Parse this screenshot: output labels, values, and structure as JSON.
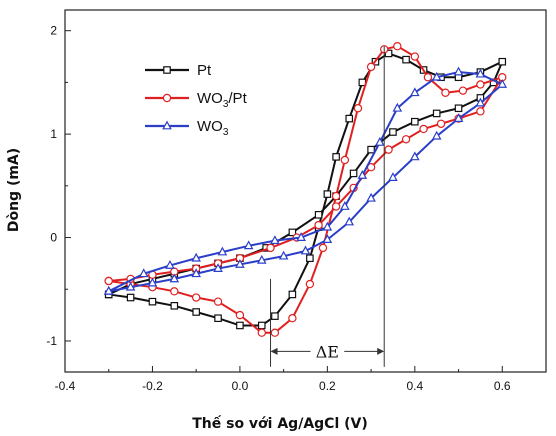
{
  "chart_data": {
    "type": "line",
    "xlabel": "Thế so với Ag/AgCl (V)",
    "ylabel": "Dòng (mA)",
    "xlim": [
      -0.4,
      0.7
    ],
    "ylim": [
      -1.3,
      2.2
    ],
    "x_ticks": [
      "-0.4",
      "-0.2",
      "0.0",
      "0.2",
      "0.4",
      "0.6"
    ],
    "y_ticks": [
      "-1",
      "0",
      "1",
      "2"
    ],
    "x_tick_values": [
      -0.4,
      -0.2,
      0.0,
      0.2,
      0.4,
      0.6
    ],
    "y_tick_values": [
      -1,
      0,
      1,
      2
    ],
    "grid": false,
    "legend_position": "top-left",
    "series": [
      {
        "name": "Pt",
        "color": "#111111",
        "marker": "square",
        "points": [
          [
            -0.3,
            -0.55
          ],
          [
            -0.25,
            -0.58
          ],
          [
            -0.2,
            -0.62
          ],
          [
            -0.15,
            -0.66
          ],
          [
            -0.1,
            -0.72
          ],
          [
            -0.05,
            -0.78
          ],
          [
            0.0,
            -0.85
          ],
          [
            0.05,
            -0.85
          ],
          [
            0.08,
            -0.76
          ],
          [
            0.12,
            -0.55
          ],
          [
            0.16,
            -0.2
          ],
          [
            0.18,
            0.1
          ],
          [
            0.2,
            0.42
          ],
          [
            0.22,
            0.78
          ],
          [
            0.25,
            1.15
          ],
          [
            0.28,
            1.5
          ],
          [
            0.31,
            1.7
          ],
          [
            0.34,
            1.78
          ],
          [
            0.38,
            1.72
          ],
          [
            0.42,
            1.62
          ],
          [
            0.46,
            1.55
          ],
          [
            0.5,
            1.55
          ],
          [
            0.55,
            1.6
          ],
          [
            0.6,
            1.7
          ],
          [
            0.58,
            1.5
          ],
          [
            0.55,
            1.35
          ],
          [
            0.5,
            1.25
          ],
          [
            0.45,
            1.2
          ],
          [
            0.4,
            1.12
          ],
          [
            0.35,
            1.02
          ],
          [
            0.3,
            0.85
          ],
          [
            0.26,
            0.62
          ],
          [
            0.22,
            0.4
          ],
          [
            0.18,
            0.22
          ],
          [
            0.12,
            0.05
          ],
          [
            0.06,
            -0.1
          ],
          [
            0.0,
            -0.2
          ],
          [
            -0.05,
            -0.25
          ],
          [
            -0.1,
            -0.3
          ],
          [
            -0.15,
            -0.35
          ],
          [
            -0.2,
            -0.4
          ],
          [
            -0.25,
            -0.45
          ],
          [
            -0.3,
            -0.55
          ]
        ]
      },
      {
        "name": "WO3/Pt",
        "color": "#e02020",
        "marker": "circle",
        "points": [
          [
            -0.3,
            -0.42
          ],
          [
            -0.25,
            -0.45
          ],
          [
            -0.2,
            -0.48
          ],
          [
            -0.15,
            -0.52
          ],
          [
            -0.1,
            -0.58
          ],
          [
            -0.05,
            -0.62
          ],
          [
            0.0,
            -0.75
          ],
          [
            0.05,
            -0.92
          ],
          [
            0.08,
            -0.92
          ],
          [
            0.12,
            -0.78
          ],
          [
            0.16,
            -0.45
          ],
          [
            0.19,
            -0.1
          ],
          [
            0.22,
            0.4
          ],
          [
            0.24,
            0.75
          ],
          [
            0.27,
            1.25
          ],
          [
            0.3,
            1.65
          ],
          [
            0.33,
            1.82
          ],
          [
            0.36,
            1.85
          ],
          [
            0.4,
            1.75
          ],
          [
            0.43,
            1.55
          ],
          [
            0.47,
            1.4
          ],
          [
            0.51,
            1.42
          ],
          [
            0.55,
            1.48
          ],
          [
            0.6,
            1.55
          ],
          [
            0.55,
            1.22
          ],
          [
            0.5,
            1.15
          ],
          [
            0.46,
            1.1
          ],
          [
            0.42,
            1.05
          ],
          [
            0.38,
            0.95
          ],
          [
            0.34,
            0.85
          ],
          [
            0.3,
            0.68
          ],
          [
            0.26,
            0.48
          ],
          [
            0.22,
            0.3
          ],
          [
            0.18,
            0.12
          ],
          [
            0.13,
            0.0
          ],
          [
            0.07,
            -0.1
          ],
          [
            0.0,
            -0.2
          ],
          [
            -0.05,
            -0.25
          ],
          [
            -0.1,
            -0.3
          ],
          [
            -0.15,
            -0.33
          ],
          [
            -0.2,
            -0.36
          ],
          [
            -0.25,
            -0.4
          ],
          [
            -0.3,
            -0.42
          ]
        ]
      },
      {
        "name": "WO3",
        "color": "#2a3ec8",
        "marker": "triangle",
        "points": [
          [
            -0.3,
            -0.52
          ],
          [
            -0.25,
            -0.48
          ],
          [
            -0.2,
            -0.44
          ],
          [
            -0.15,
            -0.4
          ],
          [
            -0.1,
            -0.35
          ],
          [
            -0.05,
            -0.3
          ],
          [
            0.0,
            -0.26
          ],
          [
            0.05,
            -0.22
          ],
          [
            0.1,
            -0.18
          ],
          [
            0.15,
            -0.13
          ],
          [
            0.2,
            -0.02
          ],
          [
            0.25,
            0.15
          ],
          [
            0.3,
            0.38
          ],
          [
            0.35,
            0.58
          ],
          [
            0.4,
            0.78
          ],
          [
            0.45,
            0.98
          ],
          [
            0.5,
            1.15
          ],
          [
            0.55,
            1.3
          ],
          [
            0.6,
            1.48
          ],
          [
            0.55,
            1.58
          ],
          [
            0.5,
            1.6
          ],
          [
            0.45,
            1.55
          ],
          [
            0.4,
            1.4
          ],
          [
            0.36,
            1.25
          ],
          [
            0.32,
            0.92
          ],
          [
            0.28,
            0.6
          ],
          [
            0.24,
            0.3
          ],
          [
            0.2,
            0.1
          ],
          [
            0.14,
            0.0
          ],
          [
            0.08,
            -0.03
          ],
          [
            0.02,
            -0.08
          ],
          [
            -0.04,
            -0.14
          ],
          [
            -0.1,
            -0.2
          ],
          [
            -0.16,
            -0.27
          ],
          [
            -0.22,
            -0.35
          ],
          [
            -0.3,
            -0.52
          ]
        ]
      }
    ],
    "annotation": {
      "label": "ΔE",
      "x_start": 0.07,
      "x_end": 0.33,
      "y": -1.1
    }
  }
}
